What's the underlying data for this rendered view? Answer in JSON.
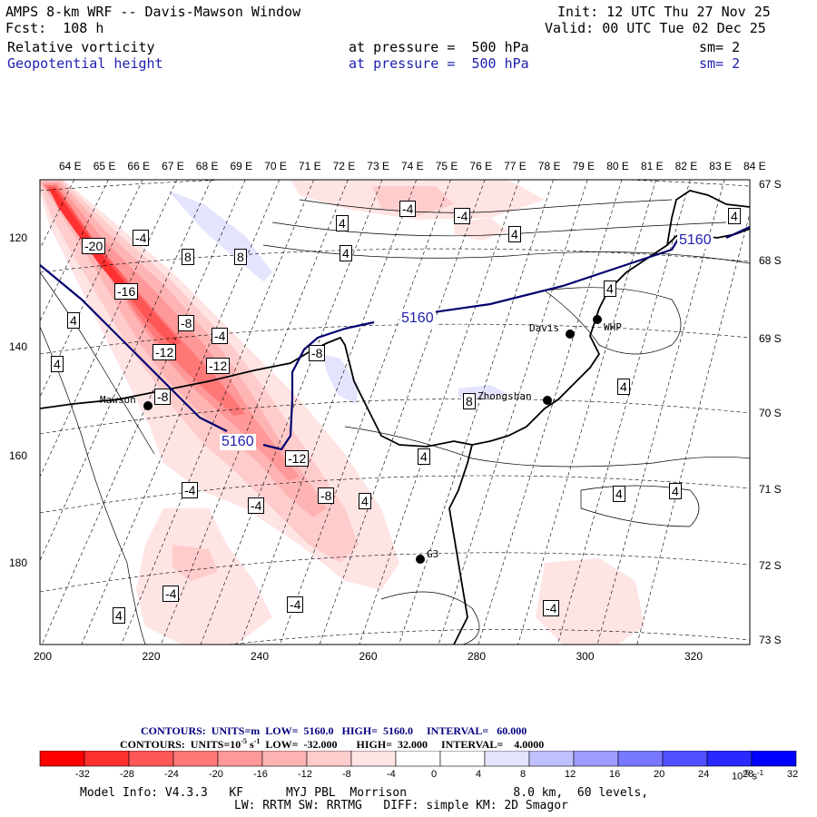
{
  "header": {
    "title": "AMPS 8-km WRF -- Davis-Mawson Window",
    "init": "Init: 12 UTC Thu 27 Nov 25",
    "fcst": "Fcst:  108 h",
    "valid": "Valid: 00 UTC Tue 02 Dec 25",
    "field1": "Relative vorticity",
    "field2": "Geopotential height",
    "pressure1": "at pressure =  500 hPa",
    "pressure2": "at pressure =  500 hPa",
    "sm1": "sm= 2",
    "sm2": "sm= 2"
  },
  "longitudes": [
    "64 E",
    "65 E",
    "66 E",
    "67 E",
    "68 E",
    "69 E",
    "70 E",
    "71 E",
    "72 E",
    "73 E",
    "74 E",
    "75 E",
    "76 E",
    "77 E",
    "78 E",
    "79 E",
    "80 E",
    "81 E",
    "82 E",
    "83 E",
    "84 E"
  ],
  "latitudes": [
    "67 S",
    "68 S",
    "69 S",
    "70 S",
    "71 S",
    "72 S",
    "73 S"
  ],
  "y_axis": [
    "120",
    "140",
    "160",
    "180"
  ],
  "x_axis": [
    "200",
    "220",
    "240",
    "260",
    "280",
    "300",
    "320"
  ],
  "stations": [
    "Mawson",
    "Davis",
    "WHP",
    "Zhongshan",
    "G3"
  ],
  "contour_labels": {
    "height": [
      "5160",
      "5160",
      "5160"
    ],
    "vort": [
      "-20",
      "-4",
      "8",
      "8",
      "-16",
      "4",
      "-8",
      "-4",
      "-12",
      "-12",
      "4",
      "-8",
      "-8",
      "-4",
      "4",
      "-4",
      "4",
      "4",
      "-4",
      "4",
      "8",
      "-12",
      "-8",
      "4",
      "-4",
      "-4",
      "-4",
      "4",
      "4",
      "-4",
      "4",
      "4",
      "-4",
      "4",
      "4"
    ]
  },
  "footer": {
    "line1_a": "CONTOURS:  UNITS=m  LOW=  5160.0",
    "line1_b": "HIGH=  5160.0",
    "line1_c": "INTERVAL=   60.000",
    "line2_a": "CONTOURS:  UNITS=10",
    "line2_exp": "-5",
    "line2_s": " s",
    "line2_exp2": "-1",
    "line2_b": "  LOW=  -32.000",
    "line2_c": "HIGH=  32.000",
    "line2_d": "INTERVAL=    4.0000"
  },
  "colorbar": {
    "labels": [
      "-32",
      "-28",
      "-24",
      "-20",
      "-16",
      "-12",
      "-8",
      "-4",
      "0",
      "4",
      "8",
      "12",
      "16",
      "20",
      "24",
      "28",
      "32"
    ],
    "unit": "10",
    "unit_exp": "-5",
    "unit_s": "s",
    "unit_s_exp": "-1",
    "colors": [
      "#ff0000",
      "#ff3030",
      "#ff5656",
      "#ff7878",
      "#ff9898",
      "#ffb4b4",
      "#ffcccc",
      "#ffe4e4",
      "#ffffff",
      "#ffffff",
      "#e4e4ff",
      "#c0c0ff",
      "#9c9cff",
      "#7878ff",
      "#5050ff",
      "#2828ff",
      "#0000ff"
    ]
  },
  "model_info": {
    "line1": "Model Info: V4.3.3   KF      MYJ PBL  Morrison               8.0 km,  60 levels,",
    "line2": "LW: RRTM SW: RRTMG   DIFF: simple KM: 2D Smagor"
  }
}
